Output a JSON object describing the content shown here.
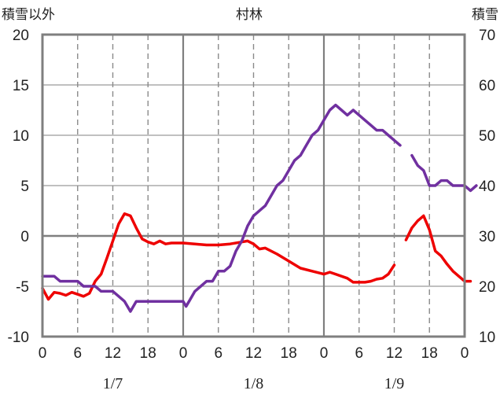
{
  "chart_data": {
    "type": "line",
    "title": "村林",
    "left_axis_label": "積雪以外",
    "right_axis_label": "積雪",
    "left_ylim": [
      -10,
      20
    ],
    "left_yticks": [
      "-10",
      "-5",
      "0",
      "5",
      "10",
      "15",
      "20"
    ],
    "right_ylim": [
      10,
      70
    ],
    "right_yticks": [
      "10",
      "20",
      "30",
      "40",
      "50",
      "60",
      "70"
    ],
    "xlim": [
      0,
      72
    ],
    "x_tick_values": [
      0,
      6,
      12,
      18,
      24,
      30,
      36,
      42,
      48,
      54,
      60,
      66,
      72
    ],
    "x_tick_labels": [
      "0",
      "6",
      "12",
      "18",
      "0",
      "6",
      "12",
      "18",
      "0",
      "6",
      "12",
      "18",
      "0"
    ],
    "date_labels": [
      {
        "x": 12,
        "label": "1/7"
      },
      {
        "x": 36,
        "label": "1/8"
      },
      {
        "x": 60,
        "label": "1/9"
      }
    ],
    "grid": true,
    "series": [
      {
        "axis": "left",
        "color": "#ee0000",
        "segments": [
          [
            [
              0,
              -5.2
            ],
            [
              1,
              -6.3
            ],
            [
              2,
              -5.6
            ],
            [
              3,
              -5.7
            ],
            [
              4,
              -5.9
            ],
            [
              5,
              -5.6
            ],
            [
              6,
              -5.8
            ],
            [
              7,
              -6.0
            ],
            [
              8,
              -5.7
            ],
            [
              9,
              -4.5
            ],
            [
              10,
              -3.8
            ],
            [
              11,
              -2.2
            ],
            [
              12,
              -0.5
            ],
            [
              13,
              1.2
            ],
            [
              14,
              2.2
            ],
            [
              15,
              2.0
            ],
            [
              16,
              0.8
            ],
            [
              17,
              -0.3
            ],
            [
              18,
              -0.6
            ],
            [
              19,
              -0.8
            ],
            [
              20,
              -0.5
            ],
            [
              21,
              -0.8
            ],
            [
              22,
              -0.7
            ],
            [
              24,
              -0.7
            ],
            [
              26,
              -0.8
            ],
            [
              28,
              -0.9
            ],
            [
              30,
              -0.9
            ],
            [
              32,
              -0.8
            ],
            [
              34,
              -0.6
            ],
            [
              35,
              -0.5
            ],
            [
              36,
              -0.8
            ],
            [
              37,
              -1.3
            ],
            [
              38,
              -1.2
            ],
            [
              40,
              -1.8
            ],
            [
              42,
              -2.5
            ],
            [
              44,
              -3.2
            ],
            [
              46,
              -3.5
            ],
            [
              48,
              -3.8
            ],
            [
              49,
              -3.6
            ],
            [
              50,
              -3.8
            ],
            [
              52,
              -4.2
            ],
            [
              53,
              -4.6
            ],
            [
              55,
              -4.6
            ],
            [
              56,
              -4.5
            ],
            [
              57,
              -4.3
            ],
            [
              58,
              -4.2
            ],
            [
              59,
              -3.8
            ],
            [
              60,
              -2.9
            ]
          ],
          [
            [
              62,
              -0.4
            ],
            [
              63,
              0.8
            ],
            [
              64,
              1.5
            ],
            [
              65,
              2.0
            ],
            [
              66,
              0.6
            ],
            [
              67,
              -1.5
            ],
            [
              68,
              -2.0
            ],
            [
              69,
              -2.8
            ],
            [
              70,
              -3.5
            ],
            [
              71,
              -4.0
            ],
            [
              72,
              -4.5
            ],
            [
              73,
              -4.5
            ]
          ]
        ]
      },
      {
        "axis": "right",
        "color": "#7030a0",
        "segments": [
          [
            [
              0,
              22
            ],
            [
              2,
              22
            ],
            [
              3,
              21
            ],
            [
              6,
              21
            ],
            [
              7,
              20
            ],
            [
              9,
              20
            ],
            [
              10,
              19
            ],
            [
              12,
              19
            ],
            [
              13,
              18
            ],
            [
              14,
              17
            ],
            [
              15,
              15
            ],
            [
              16,
              17
            ],
            [
              18,
              17
            ],
            [
              20,
              17
            ],
            [
              22,
              17
            ],
            [
              24,
              17
            ],
            [
              24.5,
              16
            ],
            [
              25,
              17
            ],
            [
              26,
              19
            ],
            [
              27,
              20
            ],
            [
              28,
              21
            ],
            [
              29,
              21
            ],
            [
              30,
              23
            ],
            [
              31,
              23
            ],
            [
              32,
              24
            ],
            [
              33,
              27
            ],
            [
              34,
              29
            ],
            [
              35,
              32
            ],
            [
              36,
              34
            ],
            [
              38,
              36
            ],
            [
              39,
              38
            ],
            [
              40,
              40
            ],
            [
              41,
              41
            ],
            [
              42,
              43
            ],
            [
              43,
              45
            ],
            [
              44,
              46
            ],
            [
              45,
              48
            ],
            [
              46,
              50
            ],
            [
              47,
              51
            ],
            [
              48,
              53
            ],
            [
              49,
              55
            ],
            [
              50,
              56
            ],
            [
              51,
              55
            ],
            [
              52,
              54
            ],
            [
              53,
              55
            ],
            [
              54,
              54
            ],
            [
              55,
              53
            ],
            [
              56,
              52
            ],
            [
              57,
              51
            ],
            [
              58,
              51
            ],
            [
              59,
              50
            ],
            [
              60,
              49
            ],
            [
              61,
              48
            ]
          ],
          [
            [
              63,
              46
            ],
            [
              64,
              44
            ],
            [
              65,
              43
            ],
            [
              66,
              40
            ],
            [
              67,
              40
            ],
            [
              68,
              41
            ],
            [
              69,
              41
            ],
            [
              70,
              40
            ],
            [
              71,
              40
            ],
            [
              72,
              40
            ],
            [
              73,
              39
            ],
            [
              74,
              40
            ]
          ]
        ]
      }
    ]
  }
}
